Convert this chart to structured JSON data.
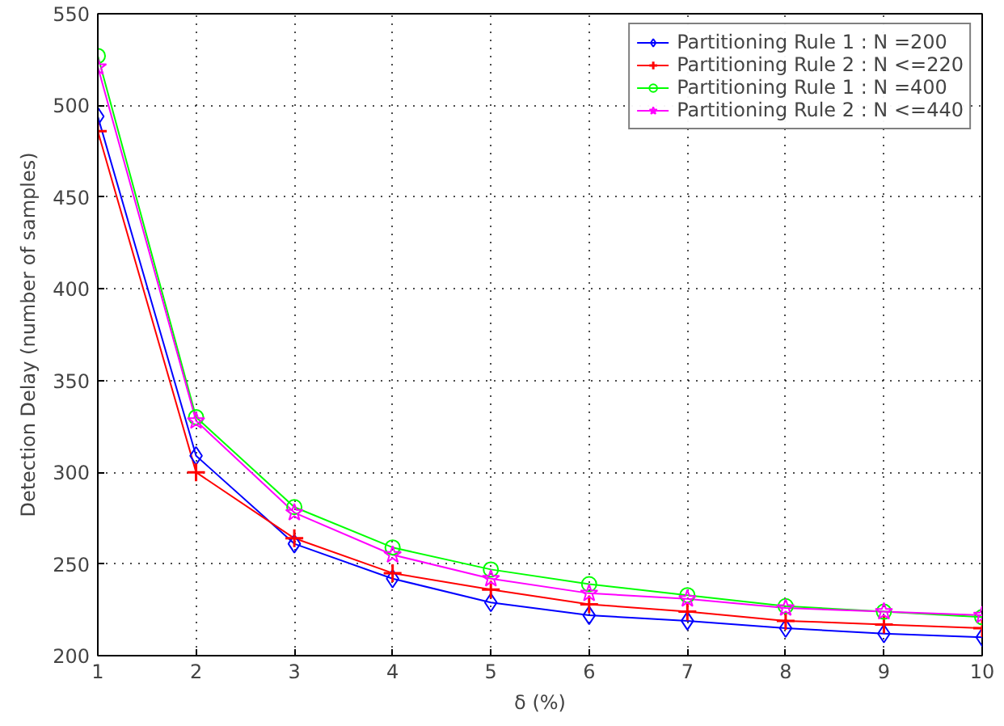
{
  "chart_data": {
    "type": "line",
    "xlabel": "δ (%)",
    "ylabel": "Detection Delay (number of samples)",
    "x": [
      1,
      2,
      3,
      4,
      5,
      6,
      7,
      8,
      9,
      10
    ],
    "series": [
      {
        "name": "Partitioning Rule 1 : N =200",
        "color": "#0000ff",
        "marker": "diamond",
        "values": [
          494,
          309,
          261,
          242,
          229,
          222,
          219,
          215,
          212,
          210
        ]
      },
      {
        "name": "Partitioning Rule 2 : N <=220",
        "color": "#ff0000",
        "marker": "cross",
        "values": [
          486,
          300,
          264,
          245,
          236,
          228,
          224,
          219,
          217,
          215
        ]
      },
      {
        "name": "Partitioning Rule 1 : N =400",
        "color": "#00ff00",
        "marker": "circle",
        "values": [
          527,
          330,
          281,
          259,
          247,
          239,
          233,
          227,
          224,
          221
        ]
      },
      {
        "name": "Partitioning Rule 2 : N <=440",
        "color": "#ff00ff",
        "marker": "star",
        "values": [
          521,
          328,
          278,
          255,
          242,
          234,
          231,
          226,
          224,
          222
        ]
      }
    ],
    "xlim": [
      1,
      10
    ],
    "ylim": [
      200,
      550
    ],
    "xticks": [
      1,
      2,
      3,
      4,
      5,
      6,
      7,
      8,
      9,
      10
    ],
    "yticks": [
      200,
      250,
      300,
      350,
      400,
      450,
      500,
      550
    ],
    "grid": true,
    "legend": "top right",
    "line_style": "solid"
  }
}
